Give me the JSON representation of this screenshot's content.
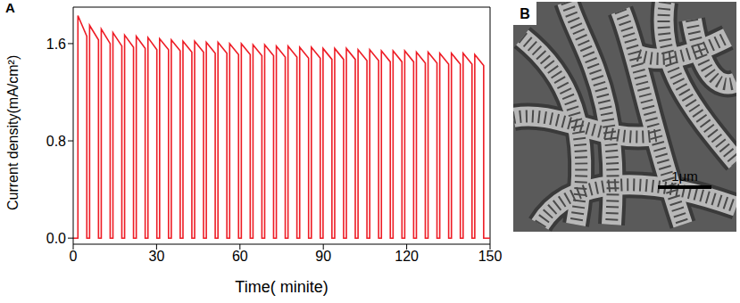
{
  "chart_data": {
    "type": "line",
    "panel_label": "A",
    "x_label": "Time( minite)",
    "y_label": "Current density(mA/cm²)",
    "xlim": [
      0,
      150
    ],
    "xticks": [
      0,
      30,
      60,
      90,
      120,
      150
    ],
    "ylim": [
      -0.05,
      1.9
    ],
    "yticks": [
      {
        "value": 0,
        "label": "0.0"
      },
      0.8,
      1.6
    ],
    "grid": false,
    "color": "#ee1c25",
    "line_style": "solid",
    "x": [
      0,
      1.7,
      1.7,
      4.9,
      4.9,
      5.9,
      5.9,
      9.1,
      9.1,
      10.1,
      10.1,
      13.3,
      13.3,
      14.3,
      14.3,
      17.5,
      17.5,
      18.5,
      18.5,
      21.7,
      21.7,
      22.7,
      22.7,
      25.9,
      25.9,
      26.9,
      26.9,
      30.1,
      30.1,
      31.1,
      31.1,
      34.3,
      34.3,
      35.3,
      35.3,
      38.5,
      38.5,
      39.5,
      39.5,
      42.7,
      42.7,
      43.7,
      43.7,
      46.9,
      46.9,
      47.9,
      47.9,
      51.1,
      51.1,
      52.1,
      52.1,
      55.3,
      55.3,
      56.3,
      56.3,
      59.5,
      59.5,
      60.5,
      60.5,
      63.7,
      63.7,
      64.7,
      64.7,
      67.9,
      67.9,
      68.9,
      68.9,
      72.1,
      72.1,
      73.1,
      73.1,
      76.3,
      76.3,
      77.3,
      77.3,
      80.5,
      80.5,
      81.5,
      81.5,
      84.7,
      84.7,
      85.7,
      85.7,
      88.9,
      88.9,
      89.9,
      89.9,
      93.1,
      93.1,
      94.1,
      94.1,
      97.3,
      97.3,
      98.3,
      98.3,
      101.5,
      101.5,
      102.5,
      102.5,
      105.7,
      105.7,
      106.7,
      106.7,
      109.9,
      109.9,
      110.9,
      110.9,
      114.1,
      114.1,
      115.1,
      115.1,
      118.3,
      118.3,
      119.3,
      119.3,
      122.5,
      122.5,
      123.5,
      123.5,
      126.7,
      126.7,
      127.7,
      127.7,
      130.9,
      130.9,
      131.9,
      131.9,
      135.1,
      135.1,
      136.1,
      136.1,
      139.3,
      139.3,
      140.3,
      140.3,
      143.5,
      143.5,
      144.5,
      144.5,
      147.7,
      147.7,
      150
    ],
    "values": [
      0,
      0,
      1.83,
      1.66,
      0,
      0,
      1.75,
      1.63,
      0,
      0,
      1.72,
      1.6,
      0,
      0,
      1.69,
      1.58,
      0,
      0,
      1.67,
      1.57,
      0,
      0,
      1.66,
      1.56,
      0,
      0,
      1.65,
      1.55,
      0,
      0,
      1.64,
      1.55,
      0,
      0,
      1.63,
      1.54,
      0,
      0,
      1.62,
      1.53,
      0,
      0,
      1.62,
      1.53,
      0,
      0,
      1.61,
      1.52,
      0,
      0,
      1.61,
      1.52,
      0,
      0,
      1.6,
      1.51,
      0,
      0,
      1.6,
      1.51,
      0,
      0,
      1.59,
      1.5,
      0,
      0,
      1.59,
      1.5,
      0,
      0,
      1.58,
      1.49,
      0,
      0,
      1.58,
      1.49,
      0,
      0,
      1.57,
      1.48,
      0,
      0,
      1.57,
      1.48,
      0,
      0,
      1.56,
      1.47,
      0,
      0,
      1.56,
      1.47,
      0,
      0,
      1.56,
      1.47,
      0,
      0,
      1.55,
      1.46,
      0,
      0,
      1.55,
      1.46,
      0,
      0,
      1.54,
      1.45,
      0,
      0,
      1.54,
      1.45,
      0,
      0,
      1.54,
      1.45,
      0,
      0,
      1.53,
      1.44,
      0,
      0,
      1.53,
      1.44,
      0,
      0,
      1.52,
      1.43,
      0,
      0,
      1.52,
      1.43,
      0,
      0,
      1.52,
      1.43,
      0,
      0,
      1.51,
      1.42,
      0,
      0
    ]
  },
  "image_panel": {
    "panel_label": "B",
    "scale_bar_label": "1μm"
  }
}
